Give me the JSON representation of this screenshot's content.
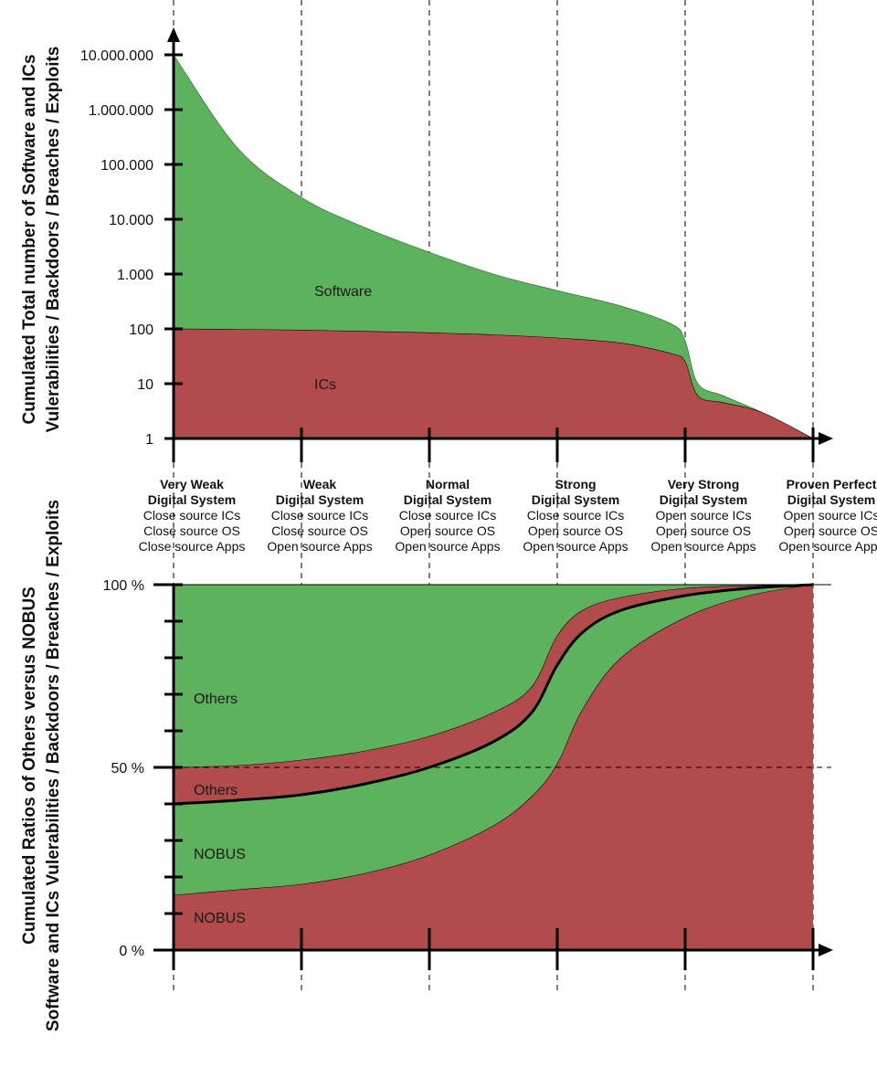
{
  "colors": {
    "green": "#5db35d",
    "red": "#b24c4c",
    "axis": "#000000"
  },
  "chart_data": [
    {
      "type": "area",
      "panel": "top",
      "ylabel_lines": [
        "Cumulated Total number of Software and ICs",
        "Vulerabilities / Backdoors / Breaches / Exploits"
      ],
      "y_scale": "log",
      "ylim": [
        1,
        10000000
      ],
      "y_ticks": [
        {
          "value": 1,
          "label": "1"
        },
        {
          "value": 10,
          "label": "10"
        },
        {
          "value": 100,
          "label": "100"
        },
        {
          "value": 1000,
          "label": "1.000"
        },
        {
          "value": 10000,
          "label": "10.000"
        },
        {
          "value": 100000,
          "label": "100.000"
        },
        {
          "value": 1000000,
          "label": "1.000.000"
        },
        {
          "value": 10000000,
          "label": "10.000.000"
        }
      ],
      "x": [
        0,
        0.5,
        1,
        1.5,
        2,
        2.5,
        3,
        3.5,
        3.9,
        4,
        4.1,
        4.3,
        4.6,
        5
      ],
      "series": [
        {
          "name": "ICs",
          "color": "red",
          "values": [
            100,
            98,
            95,
            90,
            85,
            78,
            68,
            55,
            35,
            25,
            6,
            4.5,
            3,
            1
          ]
        },
        {
          "name": "Software",
          "color": "green",
          "values": [
            10000000,
            200000,
            25000,
            7000,
            2500,
            1000,
            500,
            260,
            120,
            60,
            10,
            6,
            3,
            1
          ]
        }
      ],
      "area_labels": [
        {
          "text": "Software",
          "x": 1.1,
          "y": 500
        },
        {
          "text": "ICs",
          "x": 1.1,
          "y": 10
        }
      ]
    },
    {
      "type": "area",
      "panel": "bottom",
      "ylabel_lines": [
        "Cumulated Ratios of Others versus NOBUS",
        "Software and ICs Vulerabilities / Backdoors / Breaches / Exploits"
      ],
      "ylim": [
        0,
        100
      ],
      "y_ticks": [
        {
          "value": 0,
          "label": "0 %"
        },
        {
          "value": 50,
          "label": "50 %"
        },
        {
          "value": 100,
          "label": "100 %"
        }
      ],
      "x": [
        0,
        0.5,
        1,
        1.5,
        2,
        2.5,
        2.8,
        3,
        3.2,
        3.5,
        4,
        4.5,
        5
      ],
      "series": [
        {
          "name": "NOBUS",
          "role": "ICs NOBUS",
          "color": "red",
          "values": [
            15,
            16.5,
            18,
            21,
            26,
            34,
            42,
            51,
            66,
            80,
            91,
            97,
            100
          ]
        },
        {
          "name": "NOBUS",
          "role": "Software NOBUS",
          "color": "green",
          "values": [
            40,
            41,
            42.5,
            45.5,
            50,
            57,
            65,
            78,
            87,
            93,
            97,
            99,
            100
          ]
        },
        {
          "name": "Others",
          "role": "ICs Others",
          "color": "red",
          "values": [
            50,
            50.5,
            52,
            54.5,
            58.5,
            65,
            72,
            86,
            93,
            96.5,
            99,
            99.7,
            100
          ]
        },
        {
          "name": "Others",
          "role": "Software Others",
          "color": "green",
          "values": [
            100,
            100,
            100,
            100,
            100,
            100,
            100,
            100,
            100,
            100,
            100,
            100,
            100
          ]
        }
      ],
      "area_labels": [
        {
          "text": "Others",
          "x": 0.15,
          "y": 69
        },
        {
          "text": "Others",
          "x": 0.15,
          "y": 44
        },
        {
          "text": "NOBUS",
          "x": 0.15,
          "y": 26.5
        },
        {
          "text": "NOBUS",
          "x": 0.15,
          "y": 9
        }
      ]
    }
  ],
  "categories": [
    {
      "title": [
        "Very Weak",
        "Digital System"
      ],
      "lines": [
        "Close source ICs",
        "Close source OS",
        "Close source Apps"
      ]
    },
    {
      "title": [
        "Weak",
        "Digital System"
      ],
      "lines": [
        "Close source ICs",
        "Close source OS",
        "Open source Apps"
      ]
    },
    {
      "title": [
        "Normal",
        "Digital System"
      ],
      "lines": [
        "Close source ICs",
        "Open source OS",
        "Open source Apps"
      ]
    },
    {
      "title": [
        "Strong",
        "Digital System"
      ],
      "lines": [
        "Close source ICs",
        "Open source OS",
        "Open source Apps"
      ]
    },
    {
      "title": [
        "Very Strong",
        "Digital System"
      ],
      "lines": [
        "Open source ICs",
        "Open source OS",
        "Open source Apps"
      ]
    },
    {
      "title": [
        "Proven Perfect",
        "Digital System"
      ],
      "lines": [
        "Open source ICs",
        "Open source OS",
        "Open source Apps"
      ]
    }
  ]
}
